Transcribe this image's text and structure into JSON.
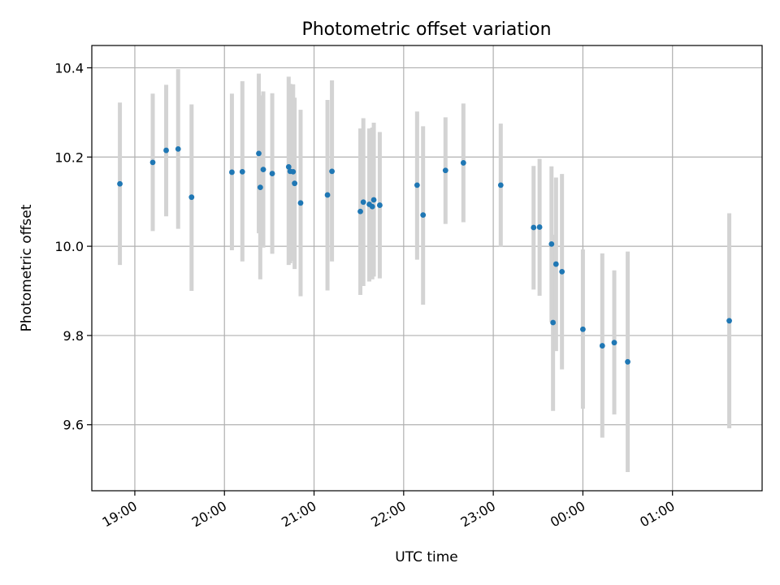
{
  "chart_data": {
    "type": "scatter",
    "title": "Photometric offset variation",
    "xlabel": "UTC time",
    "ylabel": "Photometric offset",
    "grid": true,
    "legend": "none",
    "x_ticks": [
      "19:00",
      "20:00",
      "21:00",
      "22:00",
      "23:00",
      "00:00",
      "01:00"
    ],
    "y_ticks": [
      "9.6",
      "9.8",
      "10.0",
      "10.2",
      "10.4"
    ],
    "y_tick_values": [
      9.6,
      9.8,
      10.0,
      10.2,
      10.4
    ],
    "xlim_hours": [
      18.52,
      26.0
    ],
    "ylim": [
      9.452,
      10.45
    ],
    "point_color": "#1f77b4",
    "errorbar_color": "#d3d3d3",
    "points": [
      {
        "t": "18:50",
        "y": 10.14,
        "lo": 9.958,
        "hi": 10.322
      },
      {
        "t": "19:12",
        "y": 10.188,
        "lo": 10.034,
        "hi": 10.342
      },
      {
        "t": "19:21",
        "y": 10.215,
        "lo": 10.067,
        "hi": 10.362
      },
      {
        "t": "19:29",
        "y": 10.218,
        "lo": 10.039,
        "hi": 10.397
      },
      {
        "t": "19:38",
        "y": 10.11,
        "lo": 9.9,
        "hi": 10.318
      },
      {
        "t": "20:05",
        "y": 10.166,
        "lo": 9.991,
        "hi": 10.342
      },
      {
        "t": "20:12",
        "y": 10.167,
        "lo": 9.966,
        "hi": 10.37
      },
      {
        "t": "20:23",
        "y": 10.208,
        "lo": 10.029,
        "hi": 10.387
      },
      {
        "t": "20:24",
        "y": 10.132,
        "lo": 9.926,
        "hi": 10.338
      },
      {
        "t": "20:26",
        "y": 10.172,
        "lo": 9.997,
        "hi": 10.347
      },
      {
        "t": "20:32",
        "y": 10.163,
        "lo": 9.983,
        "hi": 10.343
      },
      {
        "t": "20:43",
        "y": 10.178,
        "lo": 9.958,
        "hi": 10.38
      },
      {
        "t": "20:44",
        "y": 10.168,
        "lo": 9.962,
        "hi": 10.364
      },
      {
        "t": "20:46",
        "y": 10.167,
        "lo": 9.967,
        "hi": 10.363
      },
      {
        "t": "20:47",
        "y": 10.141,
        "lo": 9.949,
        "hi": 10.333
      },
      {
        "t": "20:51",
        "y": 10.097,
        "lo": 9.888,
        "hi": 10.306
      },
      {
        "t": "21:09",
        "y": 10.115,
        "lo": 9.901,
        "hi": 10.328
      },
      {
        "t": "21:12",
        "y": 10.168,
        "lo": 9.966,
        "hi": 10.372
      },
      {
        "t": "21:31",
        "y": 10.078,
        "lo": 9.891,
        "hi": 10.264
      },
      {
        "t": "21:33",
        "y": 10.099,
        "lo": 9.911,
        "hi": 10.287
      },
      {
        "t": "21:37",
        "y": 10.094,
        "lo": 9.921,
        "hi": 10.264
      },
      {
        "t": "21:39",
        "y": 10.089,
        "lo": 9.926,
        "hi": 10.266
      },
      {
        "t": "21:40",
        "y": 10.104,
        "lo": 9.932,
        "hi": 10.277
      },
      {
        "t": "21:44",
        "y": 10.092,
        "lo": 9.928,
        "hi": 10.256
      },
      {
        "t": "22:09",
        "y": 10.137,
        "lo": 9.97,
        "hi": 10.302
      },
      {
        "t": "22:13",
        "y": 10.07,
        "lo": 9.869,
        "hi": 10.269
      },
      {
        "t": "22:28",
        "y": 10.17,
        "lo": 10.05,
        "hi": 10.289
      },
      {
        "t": "22:40",
        "y": 10.187,
        "lo": 10.054,
        "hi": 10.32
      },
      {
        "t": "23:05",
        "y": 10.137,
        "lo": 9.999,
        "hi": 10.275
      },
      {
        "t": "23:27",
        "y": 10.042,
        "lo": 9.903,
        "hi": 10.18
      },
      {
        "t": "23:31",
        "y": 10.043,
        "lo": 9.889,
        "hi": 10.196
      },
      {
        "t": "23:39",
        "y": 10.005,
        "lo": 9.83,
        "hi": 10.179
      },
      {
        "t": "23:40",
        "y": 9.829,
        "lo": 9.631,
        "hi": 10.026
      },
      {
        "t": "23:42",
        "y": 9.96,
        "lo": 9.765,
        "hi": 10.154
      },
      {
        "t": "23:46",
        "y": 9.943,
        "lo": 9.724,
        "hi": 10.162
      },
      {
        "t": "00:00",
        "y": 9.814,
        "lo": 9.636,
        "hi": 9.993
      },
      {
        "t": "00:13",
        "y": 9.777,
        "lo": 9.571,
        "hi": 9.984
      },
      {
        "t": "00:21",
        "y": 9.784,
        "lo": 9.623,
        "hi": 9.946
      },
      {
        "t": "00:30",
        "y": 9.741,
        "lo": 9.494,
        "hi": 9.988
      },
      {
        "t": "01:38",
        "y": 9.833,
        "lo": 9.592,
        "hi": 10.074
      }
    ]
  }
}
